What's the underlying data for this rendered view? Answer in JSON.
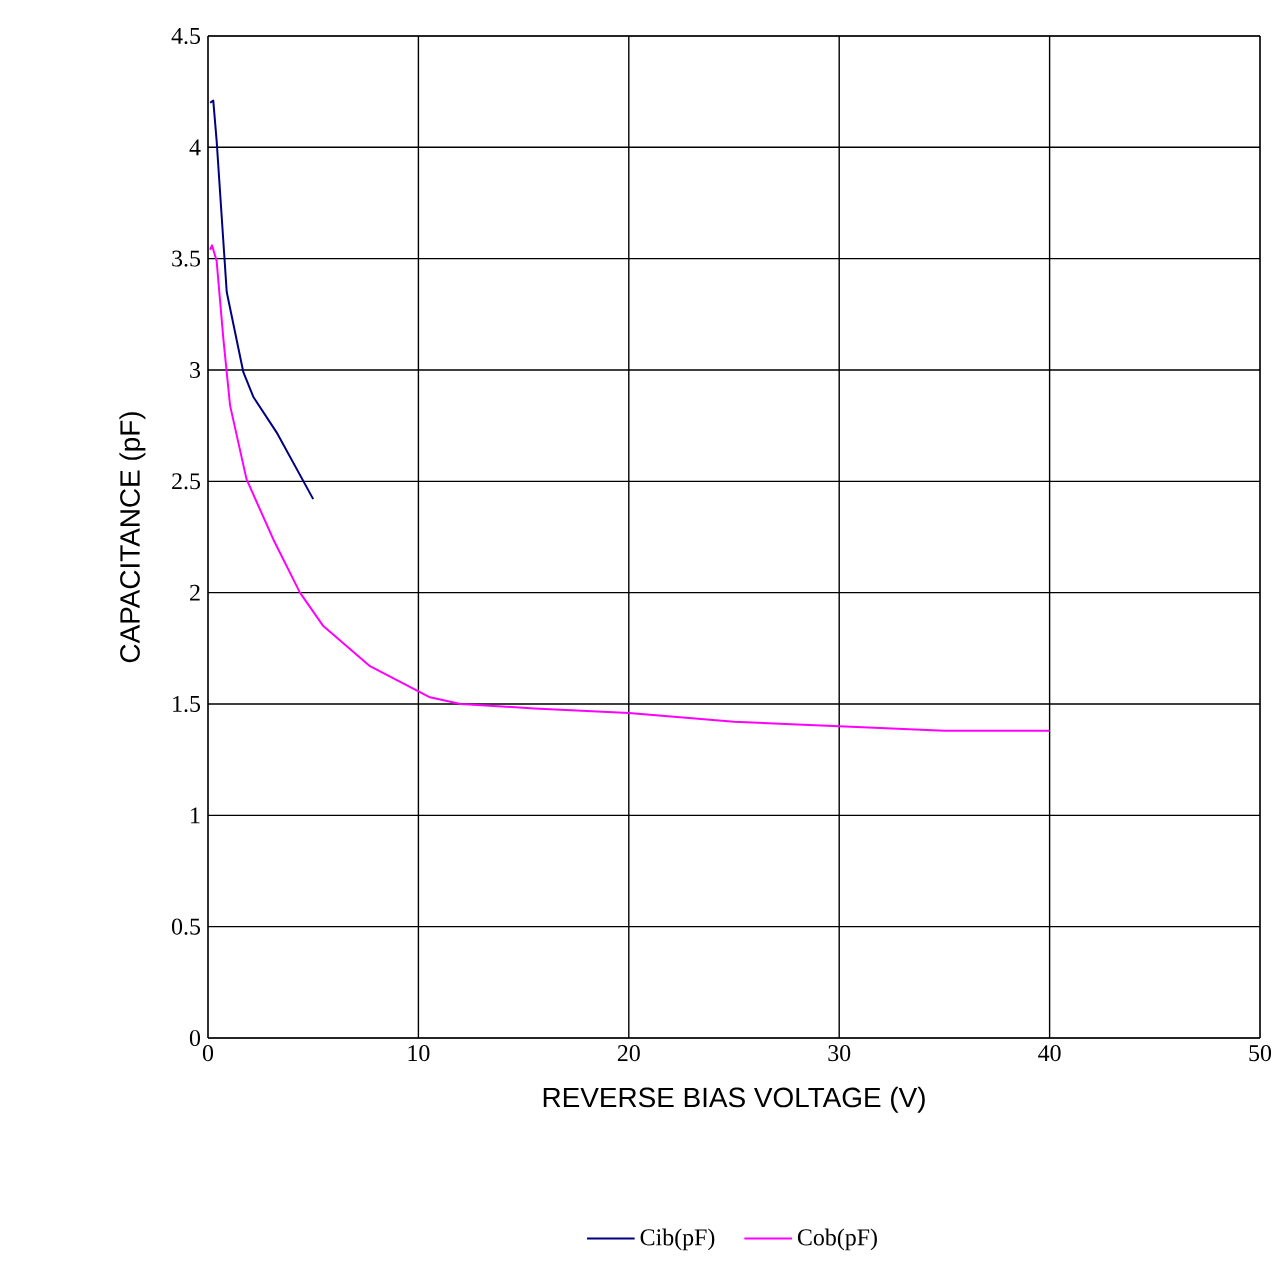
{
  "chart_data": {
    "type": "line",
    "xlabel": "REVERSE BIAS VOLTAGE (V)",
    "ylabel": "CAPACITANCE (pF)",
    "xlim": [
      0,
      50
    ],
    "ylim": [
      0,
      4.5
    ],
    "xticks": [
      0,
      10,
      20,
      30,
      40,
      50
    ],
    "yticks": [
      0,
      0.5,
      1,
      1.5,
      2,
      2.5,
      3,
      3.5,
      4,
      4.5
    ],
    "grid": true,
    "legend": "bottom",
    "marker": "none",
    "line_style": "solid",
    "series": [
      {
        "name": "Cib(pF)",
        "color": "#000080",
        "x": [
          0.1,
          0.25,
          0.41,
          0.89,
          1.68,
          2.15,
          3.26,
          5.0
        ],
        "values": [
          4.2,
          4.21,
          4.03,
          3.35,
          2.99,
          2.88,
          2.72,
          2.42
        ]
      },
      {
        "name": "Cob(pF)",
        "color": "#ff00ff",
        "x": [
          0.1,
          0.19,
          0.41,
          0.73,
          1.05,
          1.83,
          3.1,
          4.37,
          5.48,
          7.7,
          10.55,
          12.0,
          15.5,
          20.0,
          25.0,
          30.0,
          35.0,
          40.0
        ],
        "values": [
          3.54,
          3.56,
          3.49,
          3.14,
          2.84,
          2.51,
          2.24,
          2.0,
          1.85,
          1.67,
          1.53,
          1.5,
          1.48,
          1.46,
          1.42,
          1.4,
          1.38,
          1.38
        ]
      }
    ]
  }
}
